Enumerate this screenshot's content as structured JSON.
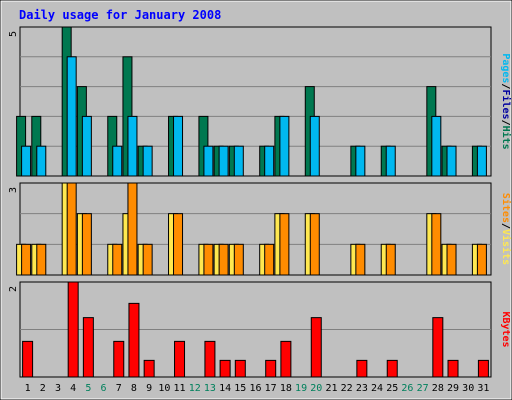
{
  "chart_data": {
    "type": "bar",
    "title": "Daily usage for January 2008",
    "categories": [
      "1",
      "2",
      "3",
      "4",
      "5",
      "6",
      "7",
      "8",
      "9",
      "10",
      "11",
      "12",
      "13",
      "14",
      "15",
      "16",
      "17",
      "18",
      "19",
      "20",
      "21",
      "22",
      "23",
      "24",
      "25",
      "26",
      "27",
      "28",
      "29",
      "30",
      "31"
    ],
    "weekend_days": [
      5,
      6,
      12,
      13,
      19,
      20,
      26,
      27
    ],
    "panels": [
      {
        "ymax_label": "5",
        "ylim": [
          0,
          5
        ],
        "side_label": [
          "Pages",
          "Files",
          "Hits"
        ],
        "series": [
          {
            "name": "Hits",
            "color": "#007850",
            "values": [
              2,
              2,
              0,
              5,
              3,
              0,
              2,
              4,
              1,
              0,
              2,
              0,
              2,
              1,
              1,
              0,
              1,
              2,
              0,
              3,
              0,
              0,
              1,
              0,
              1,
              0,
              0,
              3,
              1,
              0,
              1
            ]
          },
          {
            "name": "Files",
            "color": "#00B8F0",
            "values": [
              1,
              1,
              0,
              4,
              2,
              0,
              1,
              2,
              1,
              0,
              2,
              0,
              1,
              1,
              1,
              0,
              1,
              2,
              0,
              2,
              0,
              0,
              1,
              0,
              1,
              0,
              0,
              2,
              1,
              0,
              1
            ]
          },
          {
            "name": "Pages",
            "color": "#00B8F0",
            "values": [
              0,
              0,
              0,
              0,
              0,
              0,
              0,
              0,
              0,
              0,
              0,
              0,
              0,
              0,
              0,
              0,
              0,
              0,
              0,
              0,
              0,
              0,
              0,
              0,
              0,
              0,
              0,
              0,
              0,
              0,
              0
            ]
          }
        ]
      },
      {
        "ymax_label": "3",
        "ylim": [
          0,
          3
        ],
        "side_label": [
          "Sites",
          "Visits"
        ],
        "series": [
          {
            "name": "Visits",
            "color": "#FFE850",
            "values": [
              1,
              1,
              0,
              3,
              2,
              0,
              1,
              2,
              1,
              0,
              2,
              0,
              1,
              1,
              1,
              0,
              1,
              2,
              0,
              2,
              0,
              0,
              1,
              0,
              1,
              0,
              0,
              2,
              1,
              0,
              1
            ]
          },
          {
            "name": "Sites",
            "color": "#FF8C00",
            "values": [
              1,
              1,
              0,
              3,
              2,
              0,
              1,
              3,
              1,
              0,
              2,
              0,
              1,
              1,
              1,
              0,
              1,
              2,
              0,
              2,
              0,
              0,
              1,
              0,
              1,
              0,
              0,
              2,
              1,
              0,
              1
            ]
          }
        ]
      },
      {
        "ymax_label": "2",
        "ylim": [
          0,
          2
        ],
        "side_label": [
          "KBytes"
        ],
        "series": [
          {
            "name": "KBytes",
            "color": "#FF0000",
            "values": [
              0.75,
              0,
              0,
              2.0,
              1.25,
              0,
              0.75,
              1.55,
              0.35,
              0,
              0.75,
              0,
              0.75,
              0.35,
              0.35,
              0,
              0.35,
              0.75,
              0,
              1.25,
              0,
              0,
              0.35,
              0,
              0.35,
              0,
              0,
              1.25,
              0.35,
              0,
              0.35
            ]
          }
        ]
      }
    ],
    "colors": {
      "background": "#C0C0C0",
      "title": "#0000FF",
      "weekday_label": "#000000",
      "weekend_label": "#00805C",
      "gridline": "#808080",
      "Pages": "#00B8F0",
      "Files": "#0000A0",
      "Hits": "#007850",
      "Sites": "#FF8C00",
      "Visits": "#FFE850",
      "KBytes": "#FF0000"
    }
  }
}
